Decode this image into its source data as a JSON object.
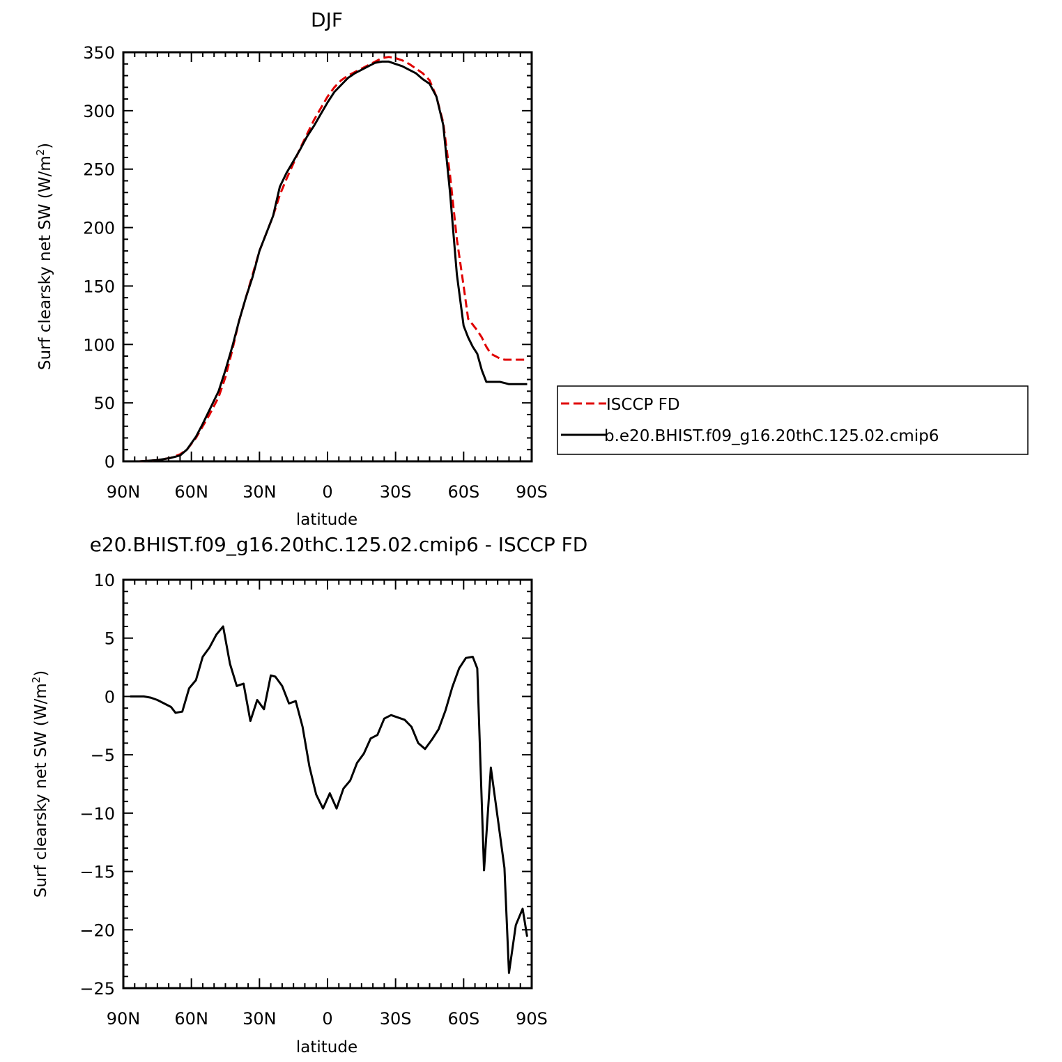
{
  "chart_data": [
    {
      "type": "line",
      "title": "DJF",
      "xlabel": "latitude",
      "ylabel": "Surf clearsky net SW (W/m²)",
      "ylabel_main": "Surf clearsky net SW (W/m",
      "ylabel_sup": "2",
      "ylabel_end": ")",
      "xlim": [
        90,
        -90
      ],
      "ylim": [
        0,
        350
      ],
      "x_ticks": [
        90,
        60,
        30,
        0,
        -30,
        -60,
        -90
      ],
      "x_tick_labels": [
        "90N",
        "60N",
        "30N",
        "0",
        "30S",
        "60S",
        "90S"
      ],
      "y_ticks": [
        0,
        50,
        100,
        150,
        200,
        250,
        300,
        350
      ],
      "y_tick_labels": [
        "0",
        "50",
        "100",
        "150",
        "200",
        "250",
        "300",
        "350"
      ],
      "legend_position": "right",
      "series": [
        {
          "name": "ISCCP FD",
          "color": "#e00000",
          "dash": "dashed",
          "x": [
            83,
            75,
            69,
            65,
            62,
            58,
            55,
            52,
            48,
            45,
            42,
            39,
            36,
            33,
            30,
            27,
            24,
            21,
            18,
            15,
            12,
            9,
            6,
            3,
            0,
            -3,
            -6,
            -9,
            -12,
            -15,
            -18,
            -21,
            -24,
            -27,
            -30,
            -33,
            -36,
            -39,
            -42,
            -45,
            -48,
            -51,
            -54,
            -57,
            -60,
            -62,
            -64,
            -66,
            -68,
            -70,
            -72,
            -74,
            -76,
            -78,
            -80,
            -82,
            -84,
            -86,
            -88
          ],
          "y": [
            0,
            1,
            3,
            6,
            10,
            20,
            30,
            40,
            55,
            72,
            95,
            120,
            140,
            160,
            180,
            195,
            210,
            228,
            242,
            255,
            268,
            280,
            292,
            302,
            312,
            320,
            326,
            330,
            333,
            336,
            339,
            342,
            345,
            346,
            345,
            343,
            340,
            336,
            332,
            326,
            312,
            290,
            245,
            190,
            150,
            122,
            117,
            112,
            106,
            98,
            92,
            90,
            88,
            87,
            87,
            87,
            87,
            87,
            87
          ]
        },
        {
          "name": "b.e20.BHIST.f09_g16.20thC.125.02.cmip6",
          "color": "#000000",
          "dash": "solid",
          "x": [
            83,
            75,
            69,
            65,
            62,
            58,
            55,
            52,
            48,
            45,
            42,
            39,
            36,
            33,
            30,
            27,
            24,
            21,
            18,
            15,
            12,
            9,
            6,
            3,
            0,
            -3,
            -6,
            -9,
            -12,
            -15,
            -18,
            -21,
            -24,
            -27,
            -30,
            -33,
            -36,
            -39,
            -42,
            -45,
            -48,
            -51,
            -54,
            -57,
            -60,
            -62,
            -64,
            -66,
            -68,
            -70,
            -72,
            -74,
            -76,
            -78,
            -80,
            -82,
            -84,
            -86,
            -88
          ],
          "y": [
            0,
            1,
            3,
            5,
            10,
            21,
            32,
            44,
            60,
            78,
            98,
            120,
            140,
            158,
            180,
            195,
            210,
            235,
            247,
            257,
            267,
            278,
            287,
            297,
            307,
            316,
            322,
            328,
            332,
            335,
            338,
            341,
            342,
            342,
            340,
            338,
            335,
            332,
            327,
            323,
            312,
            288,
            230,
            160,
            116,
            106,
            98,
            92,
            78,
            68,
            68,
            68,
            68,
            67,
            66,
            66,
            66,
            66,
            66
          ]
        }
      ]
    },
    {
      "type": "line",
      "title": "e20.BHIST.f09_g16.20thC.125.02.cmip6 - ISCCP FD",
      "xlabel": "latitude",
      "ylabel": "Surf clearsky net SW (W/m²)",
      "ylabel_main": "Surf clearsky net SW (W/m",
      "ylabel_sup": "2",
      "ylabel_end": ")",
      "xlim": [
        90,
        -90
      ],
      "ylim": [
        -25,
        10
      ],
      "x_ticks": [
        90,
        60,
        30,
        0,
        -30,
        -60,
        -90
      ],
      "x_tick_labels": [
        "90N",
        "60N",
        "30N",
        "0",
        "30S",
        "60S",
        "90S"
      ],
      "y_ticks": [
        -25,
        -20,
        -15,
        -10,
        -5,
        0,
        5,
        10
      ],
      "y_tick_labels": [
        "−25",
        "−20",
        "−15",
        "−10",
        "−5",
        "0",
        "5",
        "10"
      ],
      "series": [
        {
          "color": "#000000",
          "dash": "solid",
          "x": [
            87,
            84,
            81,
            78,
            75,
            72,
            69,
            67,
            64,
            61,
            58,
            55,
            52,
            49,
            46,
            43,
            40,
            37,
            34,
            31,
            28,
            25,
            23,
            20,
            17,
            14,
            11,
            8,
            5,
            2,
            -1,
            -4,
            -7,
            -10,
            -13,
            -16,
            -19,
            -22,
            -25,
            -28,
            -31,
            -34,
            -37,
            -40,
            -43,
            -46,
            -49,
            -52,
            -55,
            -58,
            -61,
            -64,
            -66,
            -69,
            -72,
            -75,
            -78,
            -80,
            -83,
            -86,
            -88
          ],
          "y": [
            0,
            0,
            0,
            -0.1,
            -0.3,
            -0.6,
            -0.9,
            -1.4,
            -1.3,
            0.7,
            1.4,
            3.4,
            4.2,
            5.3,
            6.0,
            2.8,
            0.9,
            1.1,
            -2.1,
            -0.3,
            -1.1,
            1.8,
            1.7,
            0.9,
            -0.6,
            -0.4,
            -2.6,
            -6.0,
            -8.4,
            -9.6,
            -8.3,
            -9.6,
            -7.9,
            -7.2,
            -5.7,
            -4.9,
            -3.6,
            -3.3,
            -1.9,
            -1.6,
            -1.8,
            -2.0,
            -2.6,
            -4.0,
            -4.5,
            -3.7,
            -2.8,
            -1.2,
            0.8,
            2.4,
            3.3,
            3.4,
            2.4,
            -14.9,
            -6.1,
            -10.4,
            -14.7,
            -23.7,
            -19.6,
            -18.2,
            -20.6
          ]
        }
      ]
    }
  ]
}
